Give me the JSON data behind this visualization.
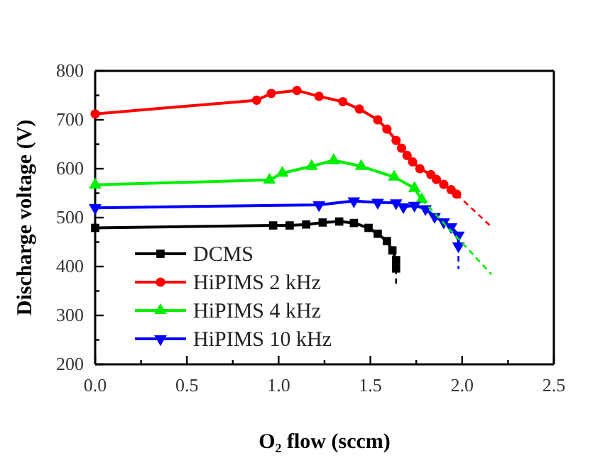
{
  "chart_data": {
    "type": "line",
    "xlabel": "O₂ flow (sccm)",
    "ylabel": "Discharge voltage (V)",
    "xlim": [
      0,
      2.5
    ],
    "ylim": [
      200,
      800
    ],
    "xticks": [
      {
        "value": 0,
        "label": "0.0"
      },
      {
        "value": 0.25,
        "label": null
      },
      {
        "value": 0.5,
        "label": "0.5"
      },
      {
        "value": 0.75,
        "label": null
      },
      {
        "value": 1,
        "label": "1.0"
      },
      {
        "value": 1.25,
        "label": null
      },
      {
        "value": 1.5,
        "label": "1.5"
      },
      {
        "value": 1.75,
        "label": null
      },
      {
        "value": 2,
        "label": "2.0"
      },
      {
        "value": 2.25,
        "label": null
      },
      {
        "value": 2.5,
        "label": "2.5"
      }
    ],
    "yticks": [
      200,
      {
        "value": 250,
        "label": null
      },
      300,
      {
        "value": 350,
        "label": null
      },
      400,
      {
        "value": 450,
        "label": null
      },
      500,
      {
        "value": 550,
        "label": null
      },
      600,
      {
        "value": 650,
        "label": null
      },
      700,
      {
        "value": 750,
        "label": null
      },
      800
    ],
    "legend": "bottom left",
    "grid": false,
    "series": [
      {
        "name": "DCMS",
        "color": "#000000",
        "marker": "square",
        "x": [
          0,
          0.97,
          1.06,
          1.15,
          1.24,
          1.33,
          1.41,
          1.49,
          1.54,
          1.59,
          1.62,
          1.64,
          1.64
        ],
        "values": [
          479,
          484,
          484,
          486,
          490,
          492,
          489,
          479,
          467,
          452,
          433,
          413,
          396
        ]
      },
      {
        "name": "HiPIMS 2 kHz",
        "color": "#ff0000",
        "marker": "circle",
        "x": [
          0,
          0.88,
          0.96,
          1.1,
          1.22,
          1.35,
          1.44,
          1.54,
          1.59,
          1.64,
          1.67,
          1.7,
          1.73,
          1.77,
          1.83,
          1.86,
          1.9,
          1.94,
          1.97
        ],
        "values": [
          712,
          740,
          754,
          760,
          748,
          737,
          722,
          700,
          681,
          658,
          642,
          627,
          614,
          600,
          588,
          578,
          568,
          557,
          548
        ]
      },
      {
        "name": "HiPIMS 4 kHz",
        "color": "#00ee00",
        "marker": "triangle",
        "x": [
          0,
          0.95,
          1.02,
          1.18,
          1.3,
          1.45,
          1.63,
          1.74,
          1.78
        ],
        "values": [
          567,
          577,
          591,
          605,
          617,
          605,
          583,
          560,
          537
        ]
      },
      {
        "name": "HiPIMS 10 kHz",
        "color": "#0000ff",
        "marker": "triangle-down",
        "x": [
          0,
          1.22,
          1.41,
          1.54,
          1.64,
          1.68,
          1.74,
          1.8,
          1.85,
          1.9,
          1.94,
          1.98,
          1.98
        ],
        "values": [
          520,
          526,
          534,
          531,
          530,
          522,
          525,
          518,
          502,
          491,
          481,
          464,
          442
        ]
      },
      {
        "color": "#000000",
        "marker": "none",
        "line_style": "dashed",
        "x": [
          1.64,
          1.64
        ],
        "values": [
          396,
          365
        ]
      },
      {
        "color": "#ff0000",
        "marker": "none",
        "line_style": "dashed",
        "x": [
          1.97,
          2.16
        ],
        "values": [
          548,
          481
        ]
      },
      {
        "color": "#00ee00",
        "marker": "none",
        "line_style": "dashed",
        "x": [
          1.78,
          2.16
        ],
        "values": [
          537,
          384
        ]
      },
      {
        "color": "#0000ff",
        "marker": "none",
        "line_style": "dashed",
        "x": [
          1.98,
          1.98
        ],
        "values": [
          442,
          395
        ]
      }
    ]
  }
}
